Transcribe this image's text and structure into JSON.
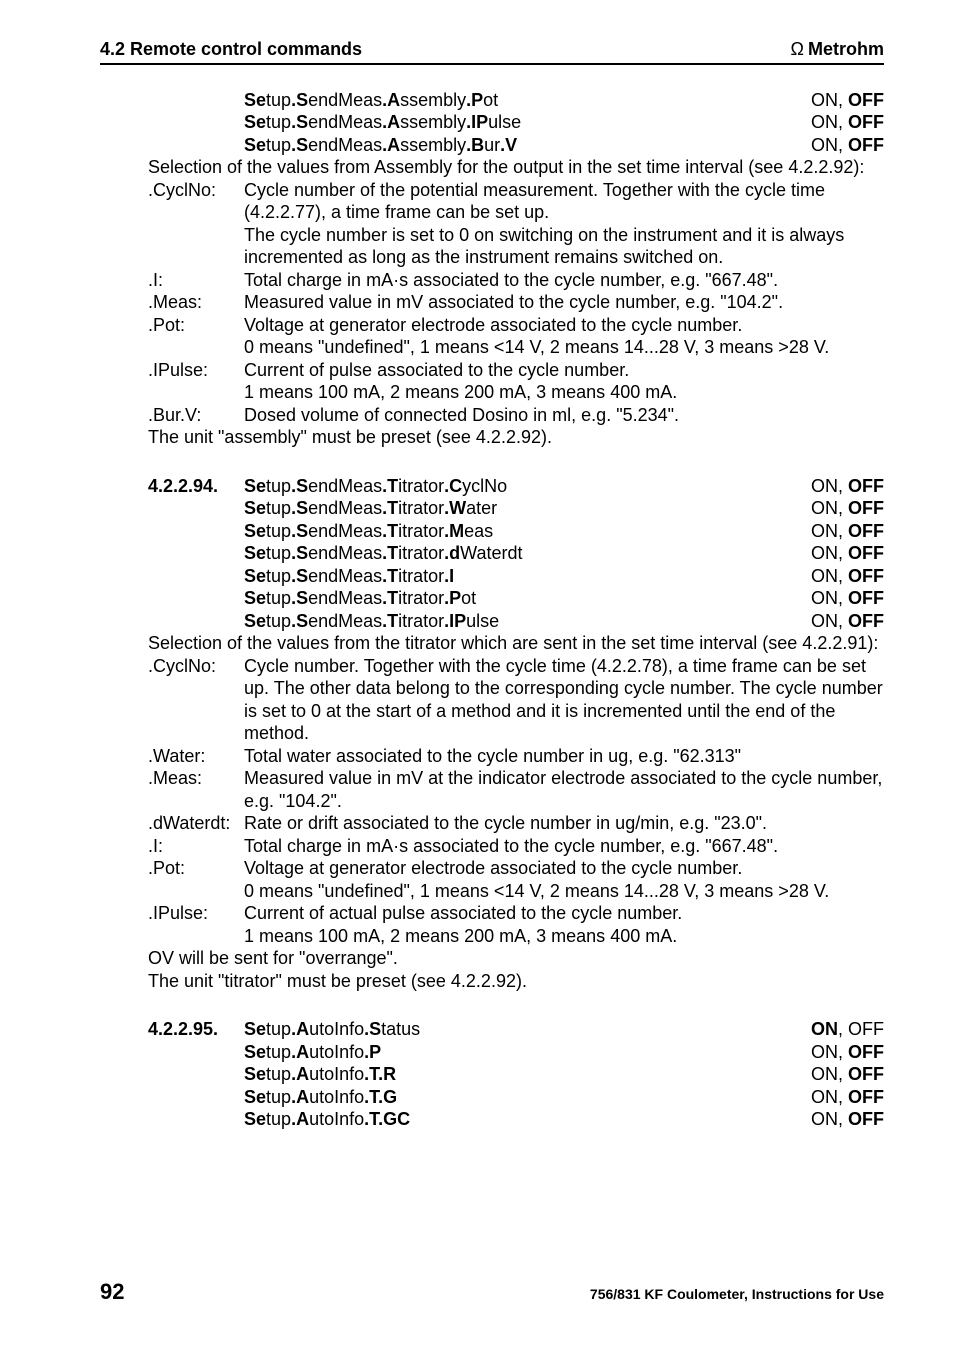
{
  "header": {
    "left": "4.2 Remote control commands",
    "brand_symbol": "Ω",
    "brand": "Metrohm"
  },
  "block1": {
    "rows": [
      {
        "lbl_parts": [
          "Se",
          "tup",
          ".S",
          "endMeas",
          ".A",
          "ssembly",
          ".P",
          "ot"
        ],
        "val_plain": "ON, ",
        "val_bold": "OFF"
      },
      {
        "lbl_parts": [
          "Se",
          "tup",
          ".S",
          "endMeas",
          ".A",
          "ssembly",
          ".IP",
          "ulse"
        ],
        "val_plain": "ON, ",
        "val_bold": "OFF"
      },
      {
        "lbl_parts": [
          "Se",
          "tup",
          ".S",
          "endMeas",
          ".A",
          "ssembly",
          ".B",
          "ur",
          ".V"
        ],
        "val_plain": "ON, ",
        "val_bold": "OFF"
      }
    ],
    "para": "Selection of the values from Assembly for the output in the set time interval (see 4.2.2.92):",
    "kv": [
      {
        "k": ".CyclNo:",
        "v": "Cycle number of the potential measurement. Together with the cycle time (4.2.2.77), a time frame can be set up.\nThe cycle number is set to 0 on switching on the instrument and it is always incremented as long as the instrument remains switched on."
      },
      {
        "k": ".I:",
        "v": "Total charge in mA·s associated to the cycle number, e.g. \"667.48\"."
      },
      {
        "k": ".Meas:",
        "v": "Measured value in mV associated to the cycle number, e.g. \"104.2\"."
      },
      {
        "k": ".Pot:",
        "v": "Voltage at generator electrode associated to the cycle number.\n0 means \"undefined\", 1 means <14 V, 2 means 14...28 V, 3 means >28 V."
      },
      {
        "k": ".IPulse:",
        "v": "Current of pulse associated to the cycle number.\n1 means 100 mA, 2 means 200 mA, 3 means 400 mA."
      },
      {
        "k": ".Bur.V:",
        "v": "Dosed volume of connected Dosino in ml, e.g. \"5.234\"."
      }
    ],
    "tail": "The unit \"assembly\" must be preset (see 4.2.2.92)."
  },
  "block2": {
    "num": "4.2.2.94.",
    "rows": [
      {
        "lbl_parts": [
          "Se",
          "tup",
          ".S",
          "endMeas",
          ".T",
          "itrator",
          ".C",
          "yclNo"
        ],
        "val_plain": "ON, ",
        "val_bold": "OFF"
      },
      {
        "lbl_parts": [
          "Se",
          "tup",
          ".S",
          "endMeas",
          ".T",
          "itrator",
          ".W",
          "ater"
        ],
        "val_plain": "ON, ",
        "val_bold": "OFF"
      },
      {
        "lbl_parts": [
          "Se",
          "tup",
          ".S",
          "endMeas",
          ".T",
          "itrator",
          ".M",
          "eas"
        ],
        "val_plain": "ON, ",
        "val_bold": "OFF"
      },
      {
        "lbl_parts": [
          "Se",
          "tup",
          ".S",
          "endMeas",
          ".T",
          "itrator",
          ".d",
          "Waterdt"
        ],
        "val_plain": "ON, ",
        "val_bold": "OFF"
      },
      {
        "lbl_parts": [
          "Se",
          "tup",
          ".S",
          "endMeas",
          ".T",
          "itrator",
          ".I"
        ],
        "val_plain": "ON, ",
        "val_bold": "OFF"
      },
      {
        "lbl_parts": [
          "Se",
          "tup",
          ".S",
          "endMeas",
          ".T",
          "itrator",
          ".P",
          "ot"
        ],
        "val_plain": "ON, ",
        "val_bold": "OFF"
      },
      {
        "lbl_parts": [
          "Se",
          "tup",
          ".S",
          "endMeas",
          ".T",
          "itrator",
          ".IP",
          "ulse"
        ],
        "val_plain": "ON, ",
        "val_bold": "OFF"
      }
    ],
    "para": "Selection of the values from the titrator which are sent in the set time interval (see 4.2.2.91):",
    "kv": [
      {
        "k": ".CyclNo:",
        "v": "Cycle number. Together with the cycle time (4.2.2.78), a time frame can be set up. The other data belong to the corresponding cycle number. The cycle number is set to 0 at the start of a method and it is incremented until the end of the method."
      },
      {
        "k": ".Water:",
        "v": "Total water associated to the cycle number in ug, e.g. \"62.313\""
      },
      {
        "k": ".Meas:",
        "v": "Measured value in mV at the indicator electrode associated to the cycle number, e.g. \"104.2\"."
      },
      {
        "k": ".dWaterdt:",
        "v": "Rate or drift associated to the cycle number in ug/min, e.g. \"23.0\"."
      },
      {
        "k": ".I:",
        "v": "Total charge in mA·s associated to the cycle number, e.g. \"667.48\"."
      },
      {
        "k": ".Pot:",
        "v": "Voltage at generator electrode associated to the cycle number.\n0 means \"undefined\", 1 means <14 V, 2 means 14...28 V, 3 means >28 V."
      },
      {
        "k": ".IPulse:",
        "v": "Current of actual pulse associated to the cycle number.\n1 means 100 mA, 2 means 200 mA, 3 means 400 mA."
      }
    ],
    "tail1": "OV will be sent for \"overrange\".",
    "tail2": "The unit \"titrator\" must be preset (see 4.2.2.92)."
  },
  "block3": {
    "num": "4.2.2.95.",
    "rows": [
      {
        "lbl_parts": [
          "Se",
          "tup",
          ".A",
          "utoInfo",
          ".S",
          "tatus"
        ],
        "val_bold": "ON",
        "val_plain": ", OFF"
      },
      {
        "lbl_parts": [
          "Se",
          "tup",
          ".A",
          "utoInfo",
          ".P"
        ],
        "val_plain": "ON, ",
        "val_bold": "OFF"
      },
      {
        "lbl_parts": [
          "Se",
          "tup",
          ".A",
          "utoInfo",
          ".T.R"
        ],
        "val_plain": "ON, ",
        "val_bold": "OFF"
      },
      {
        "lbl_parts": [
          "Se",
          "tup",
          ".A",
          "utoInfo",
          ".T.G"
        ],
        "val_plain": "ON, ",
        "val_bold": "OFF"
      },
      {
        "lbl_parts": [
          "Se",
          "tup",
          ".A",
          "utoInfo",
          ".T.GC"
        ],
        "val_plain": "ON, ",
        "val_bold": "OFF"
      }
    ]
  },
  "footer": {
    "page": "92",
    "doc": "756/831 KF Coulometer, Instructions for Use"
  }
}
